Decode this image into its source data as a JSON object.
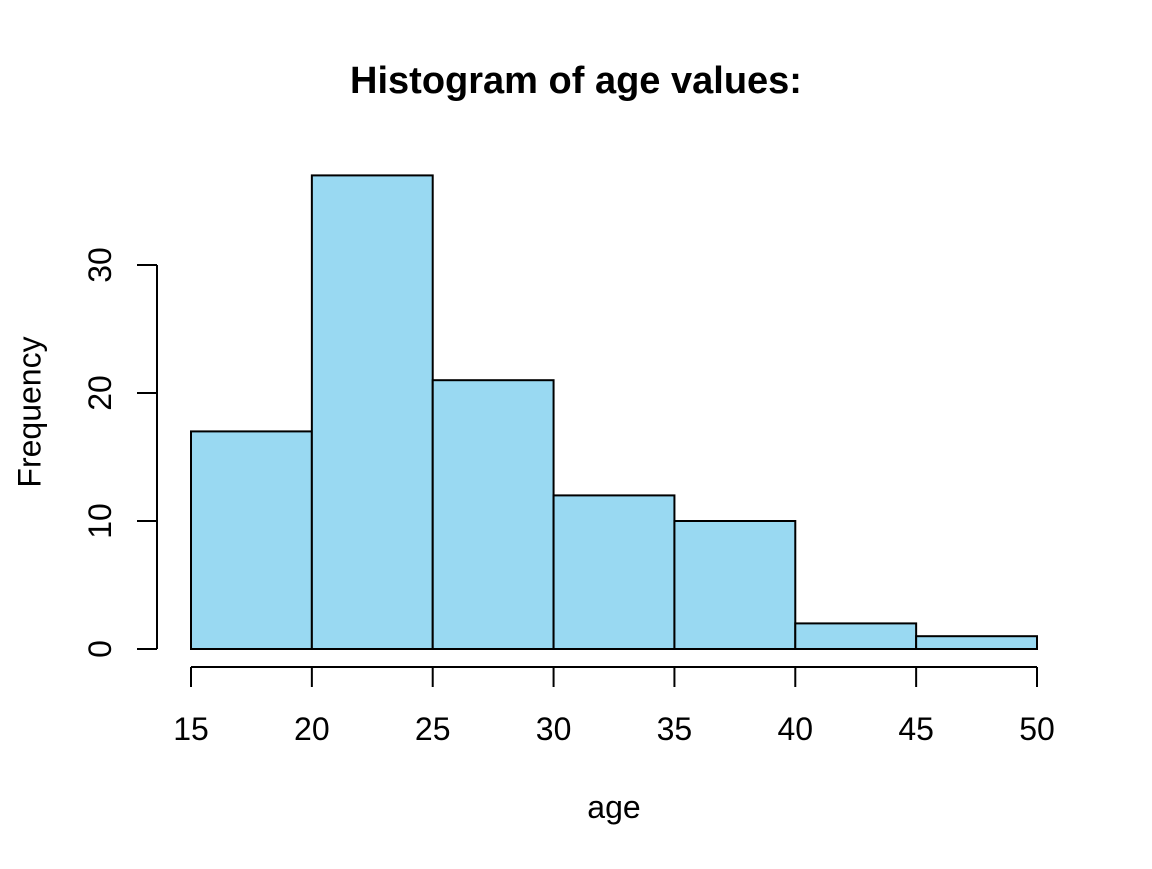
{
  "chart_data": {
    "type": "bar",
    "subtype": "histogram",
    "title": "Histogram of age values:",
    "xlabel": "age",
    "ylabel": "Frequency",
    "bin_breaks": [
      15,
      20,
      25,
      30,
      35,
      40,
      45,
      50
    ],
    "categories": [
      "15-20",
      "20-25",
      "25-30",
      "30-35",
      "35-40",
      "40-45",
      "45-50"
    ],
    "values": [
      17,
      37,
      21,
      12,
      10,
      2,
      1
    ],
    "x_ticks": [
      15,
      20,
      25,
      30,
      35,
      40,
      45,
      50
    ],
    "y_ticks": [
      0,
      10,
      20,
      30
    ],
    "xlim": [
      15,
      50
    ],
    "ylim": [
      0,
      37
    ],
    "grid": false,
    "legend": "none",
    "bar_fill": "#99D9F2",
    "bar_stroke": "#000000",
    "axis_color": "#000000",
    "text_color": "#000000",
    "background": "#FFFFFF"
  }
}
